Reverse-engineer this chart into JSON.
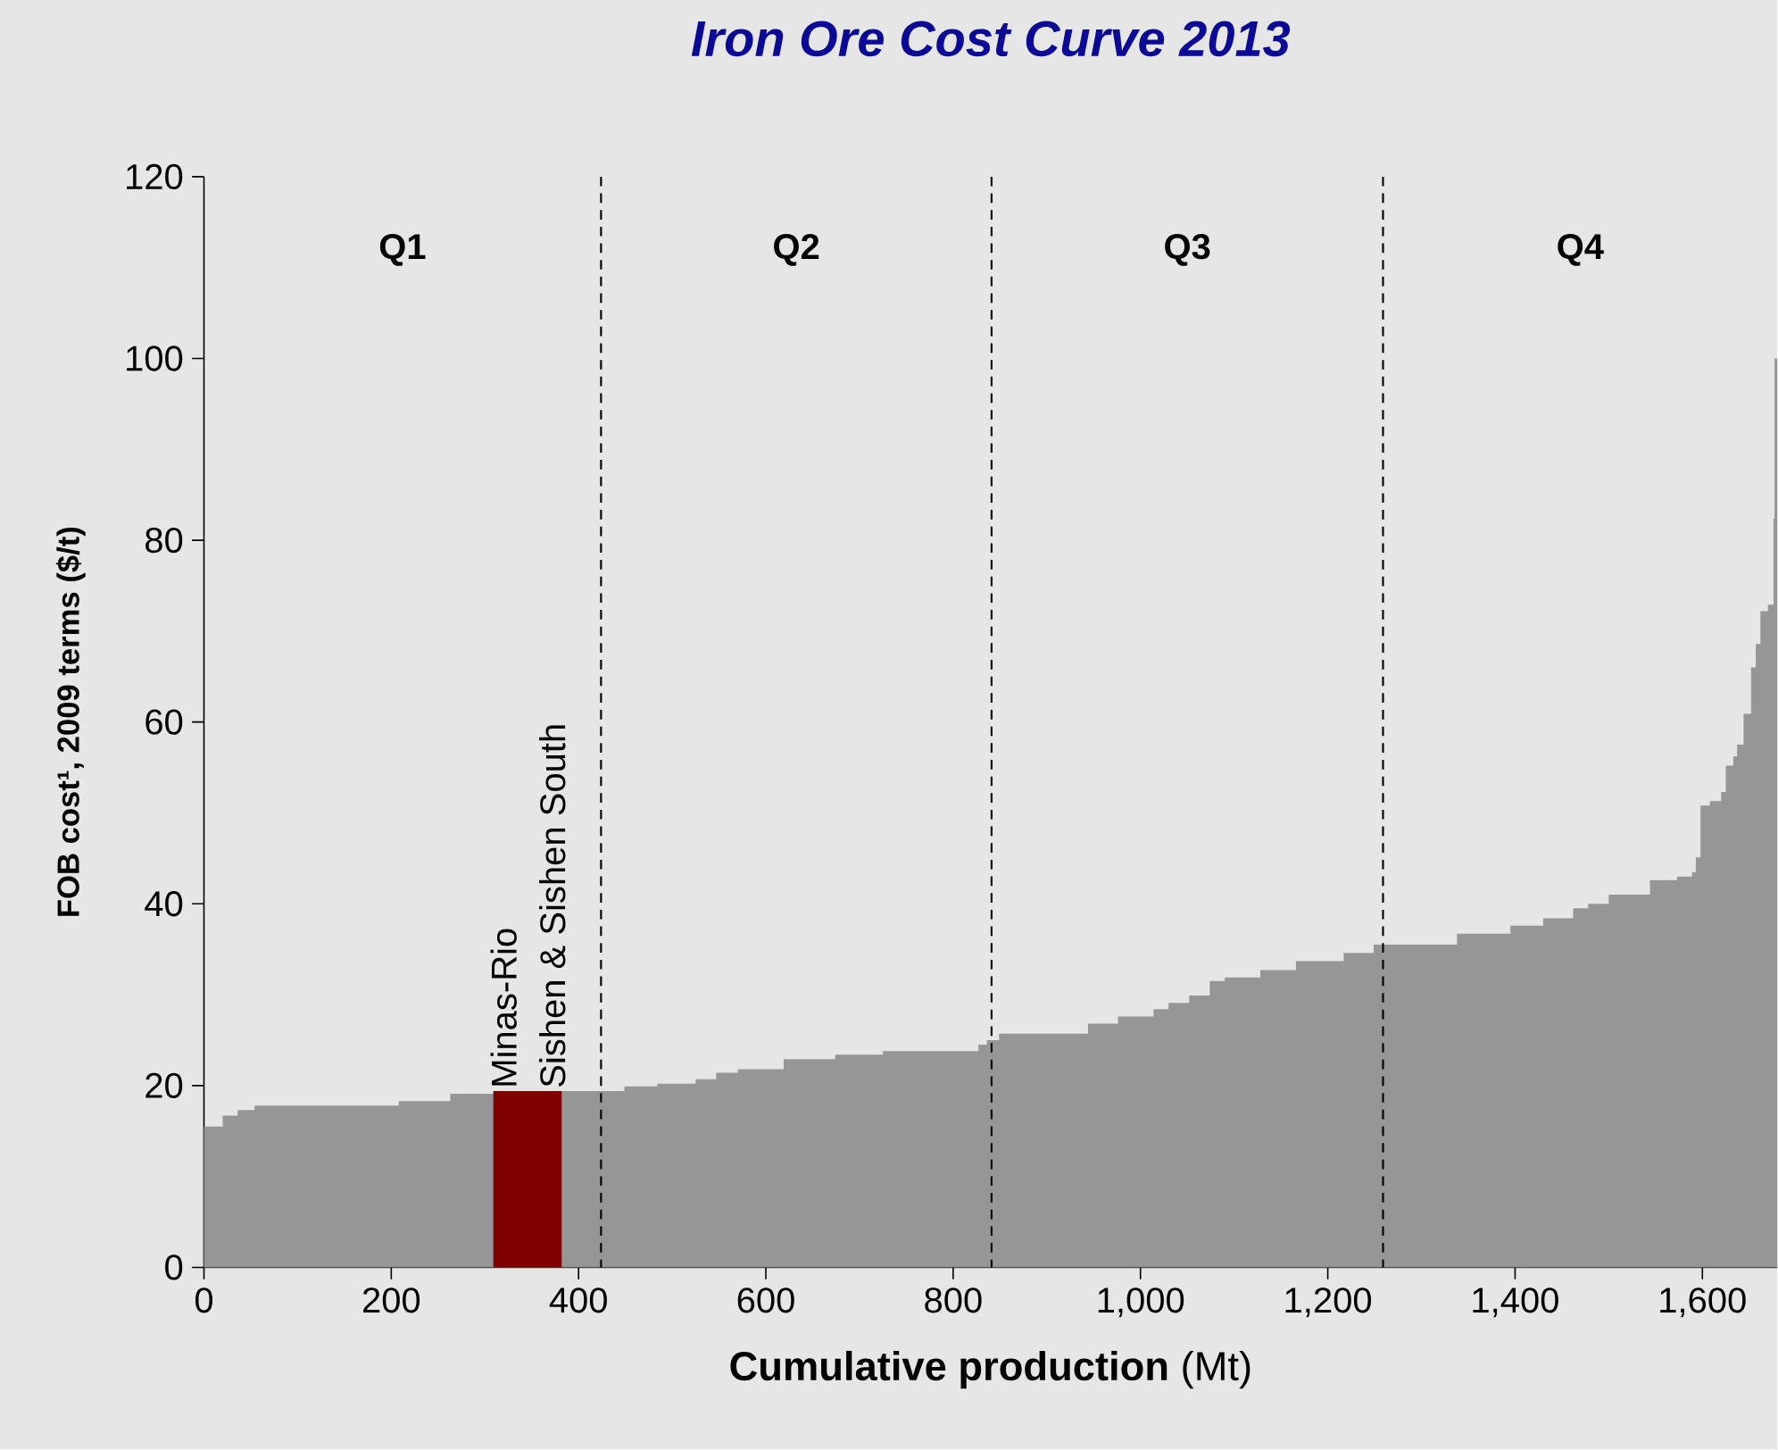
{
  "chart_data": {
    "type": "area",
    "title": "Iron Ore Cost Curve 2013",
    "xlabel": "**Cumulative production** (Mt)",
    "ylabel": "FOB cost¹, 2009 terms ($/t)",
    "xlim": [
      0,
      1680
    ],
    "ylim": [
      0,
      120
    ],
    "xticks": [
      0,
      200,
      400,
      600,
      800,
      {
        "value": 1000,
        "label": "1,000"
      },
      {
        "value": 1200,
        "label": "1,200"
      },
      {
        "value": 1400,
        "label": "1,400"
      },
      {
        "value": 1600,
        "label": "1,600"
      }
    ],
    "yticks": [
      0,
      20,
      40,
      60,
      80,
      100,
      120
    ],
    "series": [
      {
        "color": "#969696",
        "x": [
          0,
          20,
          36,
          54,
          208,
          263,
          309,
          382,
          449,
          484,
          525,
          547,
          570,
          619,
          674,
          725,
          827,
          836,
          849,
          944,
          976,
          1014,
          1030,
          1052,
          1074,
          1090,
          1128,
          1166,
          1217,
          1249,
          1338,
          1395,
          1430,
          1462,
          1478,
          1500,
          1544,
          1573,
          1589,
          1593,
          1598,
          1608,
          1620,
          1625,
          1633,
          1637,
          1644,
          1652,
          1657,
          1662,
          1670,
          1676,
          1677,
          1680
        ],
        "values": [
          15.5,
          16.7,
          17.3,
          17.8,
          18.3,
          19.1,
          19.4,
          19.4,
          19.9,
          20.2,
          20.7,
          21.4,
          21.8,
          22.9,
          23.4,
          23.8,
          24.5,
          25.0,
          25.7,
          26.8,
          27.6,
          28.4,
          29.1,
          29.9,
          31.5,
          31.9,
          32.7,
          33.7,
          34.6,
          35.5,
          36.7,
          37.6,
          38.4,
          39.5,
          40.0,
          41.0,
          42.6,
          43.0,
          43.5,
          45.1,
          50.8,
          51.3,
          52.3,
          55.2,
          56.2,
          57.5,
          60.9,
          66.0,
          68.6,
          72.2,
          72.9,
          82.4,
          100,
          100
        ]
      },
      {
        "color": "#800000",
        "x": [
          309,
          382
        ],
        "values": [
          19.4,
          19.4
        ]
      }
    ],
    "ref_lines": [
      {
        "axis": "x",
        "value": 424,
        "line_style": "dashed"
      },
      {
        "axis": "x",
        "value": 841,
        "line_style": "dashed"
      },
      {
        "axis": "x",
        "value": 1259,
        "line_style": "dashed"
      }
    ],
    "annotations": [
      "Q1",
      "Q2",
      "Q3",
      "Q4",
      {
        "text": "Minas-Rio",
        "x": 320,
        "y": 19.4
      },
      {
        "text": "Sishen & Sishen South",
        "x": 372,
        "y": 19.4
      }
    ]
  }
}
